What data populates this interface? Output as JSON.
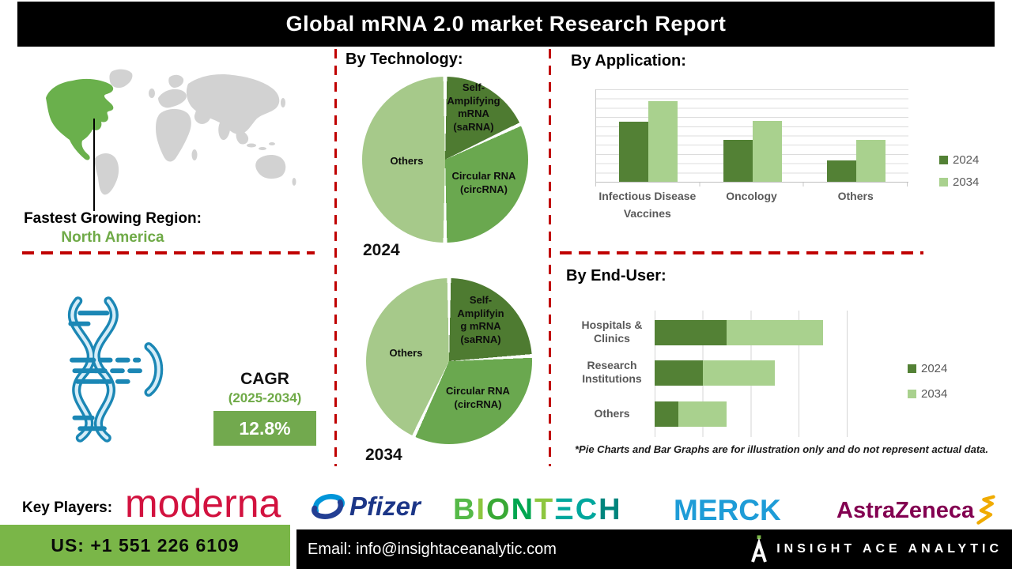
{
  "header": {
    "title": "Global mRNA 2.0 market Research Report"
  },
  "region": {
    "heading": "Fastest Growing Region:",
    "value": "North America"
  },
  "cagr": {
    "label": "CAGR",
    "period": "(2025-2034)",
    "value": "12.8%"
  },
  "sections": {
    "technology": "By Technology:",
    "application": "By Application:",
    "end_user": "By End-User:"
  },
  "footnote": "*Pie Charts and Bar Graphs are for illustration only and do not represent actual data.",
  "key_players": {
    "label": "Key Players:",
    "companies": [
      "Moderna",
      "Pfizer",
      "BioNTech",
      "Merck",
      "AstraZeneca"
    ],
    "moderna_text": "moderna",
    "pfizer_text": "Pfizer",
    "merck_text": "MERCK",
    "astrazeneca_text": "AstraZeneca",
    "biontech_letters": [
      {
        "ch": "B",
        "color": "#55b948"
      },
      {
        "ch": "I",
        "color": "#8dc63f"
      },
      {
        "ch": "O",
        "color": "#39a935"
      },
      {
        "ch": "N",
        "color": "#00a650"
      },
      {
        "ch": "T",
        "color": "#8dc63f"
      },
      {
        "ch": "Ξ",
        "color": "#00a79d"
      },
      {
        "ch": "C",
        "color": "#00a79d"
      },
      {
        "ch": "H",
        "color": "#00857d"
      }
    ]
  },
  "contact": {
    "phone": "US: +1 551 226 6109",
    "email": "Email: info@insightaceanalytic.com",
    "brand": "INSIGHT ACE ANALYTIC"
  },
  "colors": {
    "accent_red": "#c00000",
    "map_base": "#d2d2d2",
    "map_highlight": "#6ab04c",
    "region_green": "#6faa47",
    "cagr_box_green": "#72a94e",
    "phone_box_green": "#7ab648",
    "dna_blue": "#1b87b5",
    "moderna_red": "#d2123f",
    "pfizer_blue": "#1c3687",
    "merck_blue": "#1e9cd7",
    "astrazeneca_plum": "#830051",
    "astrazeneca_gold": "#f0ab00"
  },
  "chart_data": [
    {
      "type": "pie",
      "title": "2024",
      "labels": [
        "Self-\nAmplifying\nmRNA\n(saRNA)",
        "Circular RNA\n(circRNA)",
        "Others"
      ],
      "values": [
        18,
        32,
        50
      ],
      "colors": [
        "#4e7b31",
        "#6aa84f",
        "#a6c98a"
      ]
    },
    {
      "type": "pie",
      "title": "2034",
      "labels": [
        "Self-\nAmplifyin\ng mRNA\n(saRNA)",
        "Circular RNA\n(circRNA)",
        "Others"
      ],
      "values": [
        24,
        33,
        43
      ],
      "colors": [
        "#4e7b31",
        "#6aa84f",
        "#a6c98a"
      ]
    },
    {
      "type": "bar",
      "title": "By Application:",
      "categories": [
        "Infectious Disease\nVaccines",
        "Oncology",
        "Others"
      ],
      "series": [
        {
          "name": "2024",
          "color": "#538135",
          "values": [
            65,
            45,
            23
          ]
        },
        {
          "name": "2034",
          "color": "#a9d18e",
          "values": [
            87,
            66,
            45
          ]
        }
      ],
      "ylim": [
        0,
        100
      ],
      "grid": true,
      "legend_position": "right"
    },
    {
      "type": "bar",
      "orientation": "horizontal",
      "stacked": true,
      "title": "By End-User:",
      "categories": [
        "Hospitals &\nClinics",
        "Research\nInstitutions",
        "Others"
      ],
      "series": [
        {
          "name": "2024",
          "color": "#538135",
          "values": [
            1.5,
            1.0,
            0.5
          ]
        },
        {
          "name": "2034",
          "color": "#a9d18e",
          "values": [
            2.0,
            1.5,
            1.0
          ]
        }
      ],
      "xlim": [
        0,
        4
      ],
      "grid": true,
      "legend_position": "right"
    }
  ]
}
